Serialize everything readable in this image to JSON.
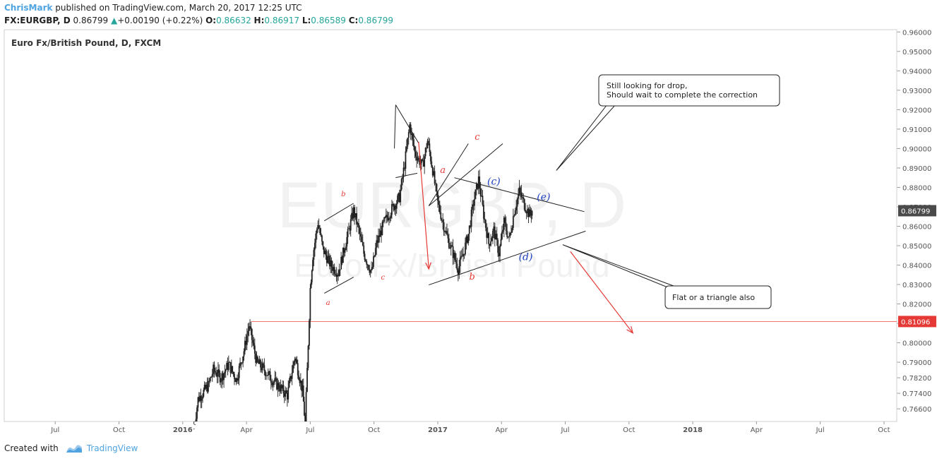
{
  "header": {
    "author": "ChrisMark",
    "published": "published on TradingView.com, March 20, 2017 12:25 UTC",
    "symbol": "FX:EURGBP, D",
    "price": "0.86799",
    "change_arrow": "▲",
    "change": "+0.00190 (+0.22%)",
    "o_label": "O:",
    "o_value": "0.86632",
    "h_label": "H:",
    "h_value": "0.86917",
    "l_label": "L:",
    "l_value": "0.86589",
    "c_label": "C:",
    "c_value": "0.86799"
  },
  "chart_data": {
    "type": "candlestick",
    "title": "Euro Fx/British Pound, D, FXCM",
    "watermark_main": "EURGBP, D",
    "watermark_sub": "Euro Fx/British Pound",
    "ylim": [
      0.7595,
      0.9612
    ],
    "y_ticks": [
      0.766,
      0.774,
      0.782,
      0.79,
      0.8,
      0.81,
      0.82,
      0.83,
      0.84,
      0.85,
      0.86,
      0.87,
      0.88,
      0.89,
      0.9,
      0.91,
      0.92,
      0.93,
      0.94,
      0.95,
      0.96
    ],
    "y_tick_labels": [
      "0.76600",
      "0.77400",
      "0.78200",
      "0.79000",
      "0.80000",
      "0.81000",
      "0.82000",
      "0.83000",
      "0.84000",
      "0.85000",
      "0.86000",
      "0.87000",
      "0.88000",
      "0.89000",
      "0.90000",
      "0.91000",
      "0.92000",
      "0.93000",
      "0.94000",
      "0.95000",
      "0.96000"
    ],
    "x_ticks": [
      {
        "t": 2015.5,
        "label": "Jul",
        "bold": false
      },
      {
        "t": 2015.75,
        "label": "Oct",
        "bold": false
      },
      {
        "t": 2016.0,
        "label": "2016",
        "bold": true
      },
      {
        "t": 2016.25,
        "label": "Apr",
        "bold": false
      },
      {
        "t": 2016.5,
        "label": "Jul",
        "bold": false
      },
      {
        "t": 2016.75,
        "label": "Oct",
        "bold": false
      },
      {
        "t": 2017.0,
        "label": "2017",
        "bold": true
      },
      {
        "t": 2017.25,
        "label": "Apr",
        "bold": false
      },
      {
        "t": 2017.5,
        "label": "Jul",
        "bold": false
      },
      {
        "t": 2017.75,
        "label": "Oct",
        "bold": false
      },
      {
        "t": 2018.0,
        "label": "2018",
        "bold": true
      },
      {
        "t": 2018.25,
        "label": "Apr",
        "bold": false
      },
      {
        "t": 2018.5,
        "label": "Jul",
        "bold": false
      },
      {
        "t": 2018.75,
        "label": "Oct",
        "bold": false
      }
    ],
    "xlim": [
      2015.3,
      2018.8
    ],
    "price_path": [
      [
        2016.04,
        0.752
      ],
      [
        2016.06,
        0.771
      ],
      [
        2016.1,
        0.778
      ],
      [
        2016.12,
        0.786
      ],
      [
        2016.15,
        0.782
      ],
      [
        2016.18,
        0.789
      ],
      [
        2016.21,
        0.781
      ],
      [
        2016.24,
        0.796
      ],
      [
        2016.26,
        0.809
      ],
      [
        2016.29,
        0.79
      ],
      [
        2016.32,
        0.786
      ],
      [
        2016.35,
        0.781
      ],
      [
        2016.38,
        0.777
      ],
      [
        2016.41,
        0.773
      ],
      [
        2016.44,
        0.793
      ],
      [
        2016.47,
        0.775
      ],
      [
        2016.48,
        0.758
      ],
      [
        2016.5,
        0.828
      ],
      [
        2016.51,
        0.845
      ],
      [
        2016.53,
        0.862
      ],
      [
        2016.55,
        0.848
      ],
      [
        2016.58,
        0.84
      ],
      [
        2016.61,
        0.836
      ],
      [
        2016.64,
        0.852
      ],
      [
        2016.67,
        0.868
      ],
      [
        2016.69,
        0.858
      ],
      [
        2016.71,
        0.846
      ],
      [
        2016.74,
        0.836
      ],
      [
        2016.76,
        0.851
      ],
      [
        2016.79,
        0.862
      ],
      [
        2016.82,
        0.869
      ],
      [
        2016.85,
        0.875
      ],
      [
        2016.87,
        0.892
      ],
      [
        2016.89,
        0.912
      ],
      [
        2016.91,
        0.898
      ],
      [
        2016.94,
        0.891
      ],
      [
        2016.96,
        0.904
      ],
      [
        2016.98,
        0.889
      ],
      [
        2017.0,
        0.872
      ],
      [
        2017.02,
        0.862
      ],
      [
        2017.04,
        0.853
      ],
      [
        2017.06,
        0.846
      ],
      [
        2017.08,
        0.838
      ],
      [
        2017.1,
        0.846
      ],
      [
        2017.12,
        0.856
      ],
      [
        2017.14,
        0.872
      ],
      [
        2017.16,
        0.884
      ],
      [
        2017.18,
        0.866
      ],
      [
        2017.2,
        0.851
      ],
      [
        2017.22,
        0.858
      ],
      [
        2017.24,
        0.846
      ],
      [
        2017.26,
        0.862
      ],
      [
        2017.28,
        0.853
      ],
      [
        2017.3,
        0.868
      ],
      [
        2017.32,
        0.878
      ],
      [
        2017.34,
        0.871
      ],
      [
        2017.36,
        0.866
      ],
      [
        2017.37,
        0.868
      ]
    ],
    "last_price": {
      "value": 0.86799,
      "label": "0.86799"
    },
    "horizontal_line": {
      "value": 0.81096,
      "label": "0.81096",
      "color": "#f44336"
    },
    "trendlines": [
      {
        "from": [
          2016.555,
          0.8255
        ],
        "to": [
          2016.67,
          0.8338
        ],
        "color": "#222222"
      },
      {
        "from": [
          2016.555,
          0.8628
        ],
        "to": [
          2016.67,
          0.8718
        ],
        "color": "#222222"
      },
      {
        "from": [
          2016.835,
          0.9225
        ],
        "to": [
          2016.925,
          0.9028
        ],
        "color": "#222222"
      },
      {
        "from": [
          2016.835,
          0.9225
        ],
        "to": [
          2016.83,
          0.9
        ],
        "color": "#222222"
      },
      {
        "from": [
          2016.835,
          0.885
        ],
        "to": [
          2016.92,
          0.8873
        ],
        "color": "#222222"
      },
      {
        "from": [
          2016.965,
          0.8298
        ],
        "to": [
          2017.58,
          0.8575
        ],
        "color": "#222222"
      },
      {
        "from": [
          2017.065,
          0.885
        ],
        "to": [
          2017.575,
          0.8675
        ],
        "color": "#222222"
      },
      {
        "from": [
          2016.965,
          0.8705
        ],
        "to": [
          2017.12,
          0.9025
        ],
        "color": "#222222"
      },
      {
        "from": [
          2016.965,
          0.8705
        ],
        "to": [
          2017.255,
          0.9025
        ],
        "color": "#222222"
      }
    ],
    "arrows": [
      {
        "from": [
          2016.925,
          0.9035
        ],
        "to": [
          2016.965,
          0.838
        ],
        "color": "#e53935"
      },
      {
        "from": [
          2017.52,
          0.847
        ],
        "to": [
          2017.765,
          0.805
        ],
        "color": "#e53935"
      }
    ],
    "wave_labels": [
      {
        "text": "b",
        "t": 2016.63,
        "v": 0.8755,
        "color": "#e53935",
        "size": 10
      },
      {
        "text": "a",
        "t": 2016.57,
        "v": 0.8195,
        "color": "#e53935",
        "size": 10
      },
      {
        "text": "c",
        "t": 2016.785,
        "v": 0.8325,
        "color": "#e53935",
        "size": 10
      },
      {
        "text": "c",
        "t": 2017.155,
        "v": 0.9045,
        "color": "#e53935",
        "size": 13
      },
      {
        "text": "a",
        "t": 2017.02,
        "v": 0.8875,
        "color": "#e53935",
        "size": 13
      },
      {
        "text": "b",
        "t": 2017.135,
        "v": 0.8325,
        "color": "#e53935",
        "size": 13
      },
      {
        "text": "(c)",
        "t": 2017.22,
        "v": 0.8815,
        "color": "#1e3fbf",
        "size": 14
      },
      {
        "text": "(e)",
        "t": 2017.415,
        "v": 0.8735,
        "color": "#1e3fbf",
        "size": 14
      },
      {
        "text": "(d)",
        "t": 2017.345,
        "v": 0.8425,
        "color": "#1e3fbf",
        "size": 14
      }
    ],
    "callouts": [
      {
        "lines": [
          "Still looking for drop,",
          "Should wait to complete the correction"
        ],
        "tail_to": [
          2017.465,
          0.8887
        ],
        "tail_from_side": "bottom-left"
      },
      {
        "lines": [
          "Flat or a triangle also"
        ],
        "tail_to": [
          2017.49,
          0.8505
        ],
        "tail_from_side": "top-left"
      }
    ]
  },
  "footer": {
    "created_with": "Created with",
    "brand": "TradingView"
  }
}
